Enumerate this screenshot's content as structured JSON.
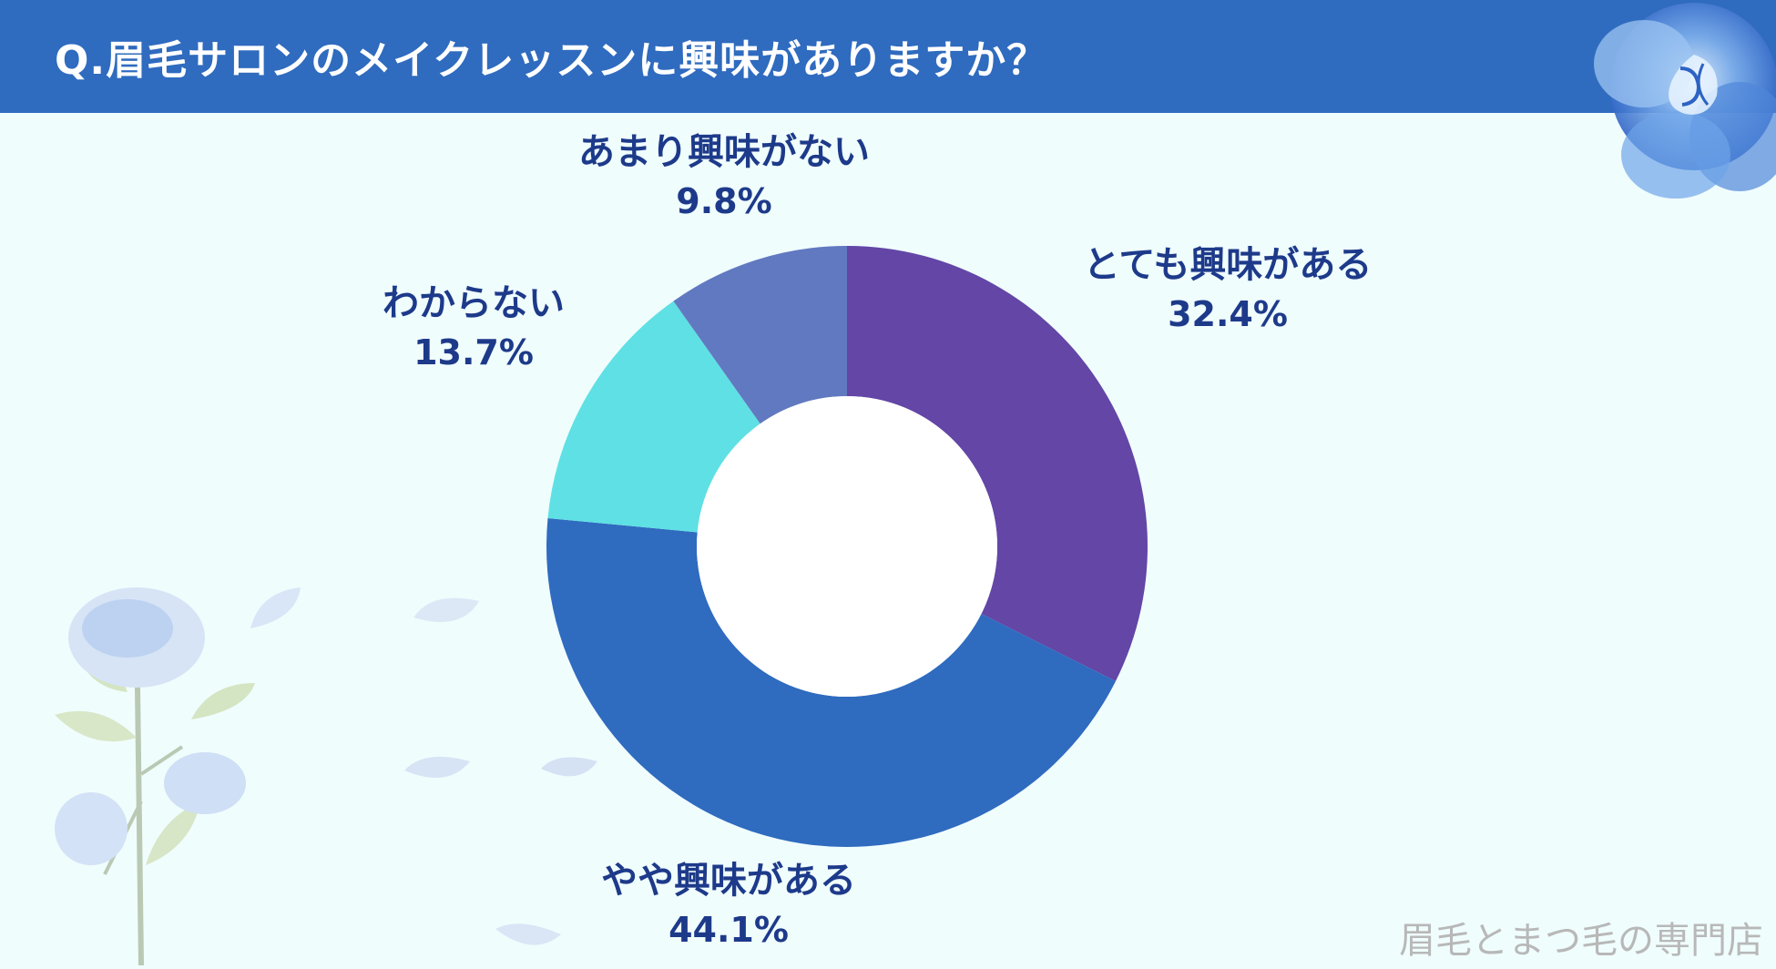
{
  "header": {
    "title": "Q.眉毛サロンのメイクレッスンに興味がありますか？"
  },
  "chart_data": {
    "type": "pie",
    "donut": true,
    "title": "Q.眉毛サロンのメイクレッスンに興味がありますか？",
    "slices": [
      {
        "label": "とても興味がある",
        "value": 32.4,
        "display": "32.4%",
        "color": "#6346a6"
      },
      {
        "label": "やや興味がある",
        "value": 44.1,
        "display": "44.1%",
        "color": "#2f6bbf"
      },
      {
        "label": "わからない",
        "value": 13.7,
        "display": "13.7%",
        "color": "#5fe0e4"
      },
      {
        "label": "あまり興味がない",
        "value": 9.8,
        "display": "9.8%",
        "color": "#6179c0"
      }
    ]
  },
  "footer": {
    "credit": "眉毛とまつ毛の専門店"
  },
  "decorations": {
    "top_right": "blue-rose-icon",
    "bottom_left": "blue-rose-branch-icon"
  }
}
